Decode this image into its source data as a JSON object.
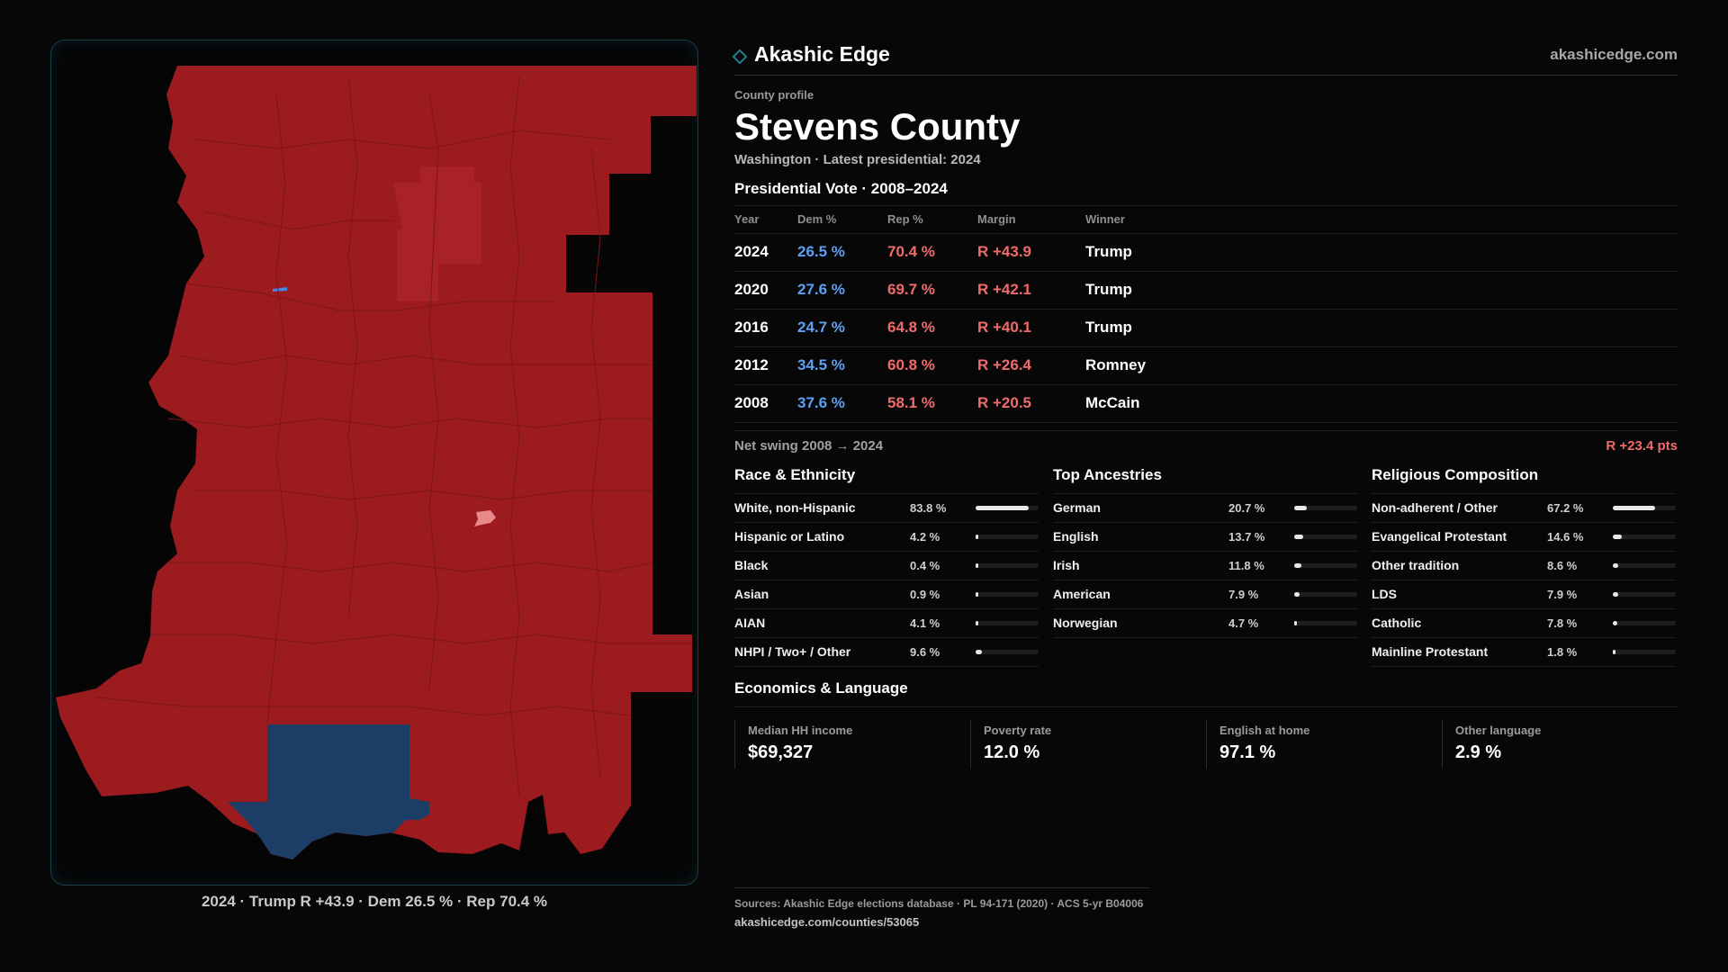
{
  "brand": {
    "name": "Akashic Edge",
    "url": "akashicedge.com",
    "accent": "#1f7d8c"
  },
  "profile": {
    "eyebrow": "County profile",
    "title": "Stevens County",
    "subtitle": "Washington · Latest presidential: 2024"
  },
  "votes": {
    "title": "Presidential Vote · 2008–2024",
    "headers": {
      "year": "Year",
      "dem": "Dem %",
      "rep": "Rep %",
      "margin": "Margin",
      "winner": "Winner"
    },
    "rows": [
      {
        "year": "2024",
        "dem": "26.5 %",
        "rep": "70.4 %",
        "margin": "R +43.9",
        "winner": "Trump"
      },
      {
        "year": "2020",
        "dem": "27.6 %",
        "rep": "69.7 %",
        "margin": "R +42.1",
        "winner": "Trump"
      },
      {
        "year": "2016",
        "dem": "24.7 %",
        "rep": "64.8 %",
        "margin": "R +40.1",
        "winner": "Trump"
      },
      {
        "year": "2012",
        "dem": "34.5 %",
        "rep": "60.8 %",
        "margin": "R +26.4",
        "winner": "Romney"
      },
      {
        "year": "2008",
        "dem": "37.6 %",
        "rep": "58.1 %",
        "margin": "R +20.5",
        "winner": "McCain"
      }
    ],
    "swing_label": "Net swing 2008 → 2024",
    "swing_value": "R +23.4 pts"
  },
  "demographics": [
    {
      "title": "Race & Ethnicity",
      "rows": [
        {
          "label": "White, non-Hispanic",
          "value": "83.8 %",
          "pct": 83.8
        },
        {
          "label": "Hispanic or Latino",
          "value": "4.2 %",
          "pct": 4.2
        },
        {
          "label": "Black",
          "value": "0.4 %",
          "pct": 0.4
        },
        {
          "label": "Asian",
          "value": "0.9 %",
          "pct": 0.9
        },
        {
          "label": "AIAN",
          "value": "4.1 %",
          "pct": 4.1
        },
        {
          "label": "NHPI / Two+ / Other",
          "value": "9.6 %",
          "pct": 9.6
        }
      ]
    },
    {
      "title": "Top Ancestries",
      "rows": [
        {
          "label": "German",
          "value": "20.7 %",
          "pct": 20.7
        },
        {
          "label": "English",
          "value": "13.7 %",
          "pct": 13.7
        },
        {
          "label": "Irish",
          "value": "11.8 %",
          "pct": 11.8
        },
        {
          "label": "American",
          "value": "7.9 %",
          "pct": 7.9
        },
        {
          "label": "Norwegian",
          "value": "4.7 %",
          "pct": 4.7
        }
      ]
    },
    {
      "title": "Religious Composition",
      "rows": [
        {
          "label": "Non-adherent / Other",
          "value": "67.2 %",
          "pct": 67.2
        },
        {
          "label": "Evangelical Protestant",
          "value": "14.6 %",
          "pct": 14.6
        },
        {
          "label": "Other tradition",
          "value": "8.6 %",
          "pct": 8.6
        },
        {
          "label": "LDS",
          "value": "7.9 %",
          "pct": 7.9
        },
        {
          "label": "Catholic",
          "value": "7.8 %",
          "pct": 7.8
        },
        {
          "label": "Mainline Protestant",
          "value": "1.8 %",
          "pct": 1.8
        }
      ]
    }
  ],
  "economics": {
    "title": "Economics & Language",
    "cards": [
      {
        "label": "Median HH income",
        "value": "$69,327"
      },
      {
        "label": "Poverty rate",
        "value": "12.0 %"
      },
      {
        "label": "English at home",
        "value": "97.1 %"
      },
      {
        "label": "Other language",
        "value": "2.9 %"
      }
    ]
  },
  "map": {
    "caption": "2024 · Trump R +43.9 · Dem 26.5 % · Rep 70.4 %",
    "colors": {
      "rep": "#9b1b1f",
      "rep_light": "#a82226",
      "rep_lean": "#e88a8a",
      "dem": "#1c3d66",
      "water": "#4a86e8",
      "border": "#7d1518"
    }
  },
  "footer": {
    "sources": "Sources: Akashic Edge elections database · PL 94-171 (2020) · ACS 5-yr B04006",
    "url": "akashicedge.com/counties/53065"
  }
}
